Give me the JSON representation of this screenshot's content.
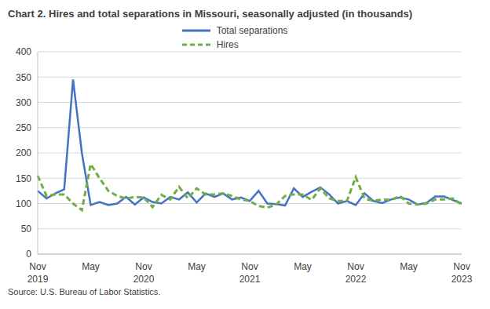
{
  "chart_data": {
    "type": "line",
    "title": "Chart 2. Hires and total separations in Missouri, seasonally adjusted (in thousands)",
    "source": "Source: U.S. Bureau of Labor Statistics.",
    "categories": [
      "Nov 2019",
      null,
      null,
      null,
      null,
      null,
      "May",
      null,
      null,
      null,
      null,
      null,
      "Nov 2020",
      null,
      null,
      null,
      null,
      null,
      "May",
      null,
      null,
      null,
      null,
      null,
      "Nov 2021",
      null,
      null,
      null,
      null,
      null,
      "May",
      null,
      null,
      null,
      null,
      null,
      "Nov 2022",
      null,
      null,
      null,
      null,
      null,
      "May",
      null,
      null,
      null,
      null,
      null,
      "Nov 2023"
    ],
    "series": [
      {
        "name": "Total separations",
        "color": "#4472c4",
        "line_style": "solid",
        "values": [
          125,
          110,
          120,
          128,
          345,
          200,
          97,
          103,
          97,
          100,
          113,
          98,
          112,
          103,
          100,
          113,
          108,
          122,
          102,
          120,
          113,
          120,
          108,
          112,
          105,
          125,
          100,
          99,
          96,
          130,
          113,
          123,
          132,
          118,
          100,
          105,
          97,
          120,
          105,
          101,
          108,
          112,
          108,
          98,
          101,
          114,
          114,
          107,
          100
        ]
      },
      {
        "name": "Hires",
        "color": "#70ad47",
        "line_style": "dashed",
        "values": [
          155,
          115,
          118,
          118,
          100,
          87,
          178,
          150,
          125,
          115,
          110,
          113,
          112,
          93,
          117,
          108,
          133,
          110,
          130,
          118,
          118,
          120,
          115,
          108,
          105,
          95,
          92,
          98,
          115,
          118,
          118,
          107,
          130,
          110,
          105,
          105,
          152,
          110,
          105,
          108,
          107,
          115,
          100,
          98,
          100,
          108,
          108,
          110,
          98
        ]
      }
    ],
    "ylim": [
      0,
      400
    ],
    "yticks": [
      0,
      50,
      100,
      150,
      200,
      250,
      300,
      350,
      400
    ],
    "grid": true,
    "legend": "top"
  }
}
